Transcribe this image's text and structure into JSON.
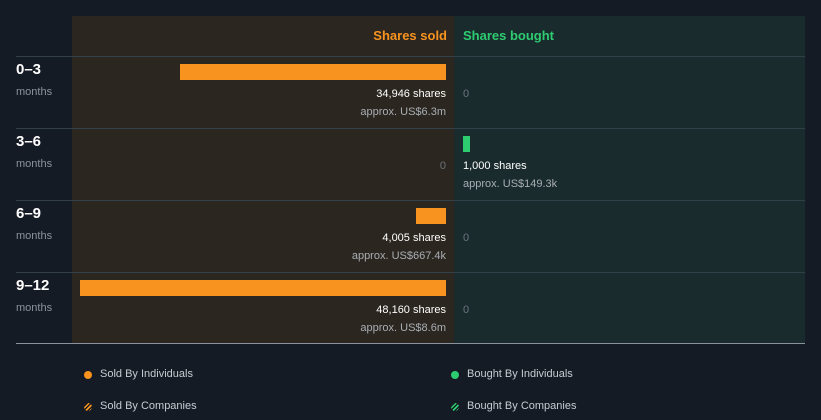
{
  "header": {
    "sold": "Shares sold",
    "bought": "Shares bought"
  },
  "rows": [
    {
      "label": "0–3",
      "sub": "months"
    },
    {
      "label": "3–6",
      "sub": "months"
    },
    {
      "label": "6–9",
      "sub": "months"
    },
    {
      "label": "9–12",
      "sub": "months"
    }
  ],
  "colors": {
    "sold": "#f7931e",
    "bought": "#2ecc71",
    "background": "#151b24"
  },
  "chart_data": {
    "type": "bar",
    "orientation": "horizontal-diverging",
    "categories": [
      "0–3 months",
      "3–6 months",
      "6–9 months",
      "9–12 months"
    ],
    "series": [
      {
        "name": "Shares sold",
        "values": [
          34946,
          0,
          4005,
          48160
        ],
        "shares_labels": [
          "34,946 shares",
          "0",
          "4,005 shares",
          "48,160 shares"
        ],
        "approx_labels": [
          "approx. US$6.3m",
          "",
          "approx. US$667.4k",
          "approx. US$8.6m"
        ]
      },
      {
        "name": "Shares bought",
        "values": [
          0,
          1000,
          0,
          0
        ],
        "shares_labels": [
          "0",
          "1,000 shares",
          "0",
          "0"
        ],
        "approx_labels": [
          "",
          "approx. US$149.3k",
          "",
          ""
        ]
      }
    ],
    "legend": [
      {
        "label": "Sold By Individuals",
        "marker": "dot",
        "color": "#f7931e"
      },
      {
        "label": "Bought By Individuals",
        "marker": "dot",
        "color": "#2ecc71"
      },
      {
        "label": "Sold By Companies",
        "marker": "hatch",
        "color": "#f7931e"
      },
      {
        "label": "Bought By Companies",
        "marker": "hatch",
        "color": "#2ecc71"
      }
    ],
    "legend_position": "bottom"
  }
}
